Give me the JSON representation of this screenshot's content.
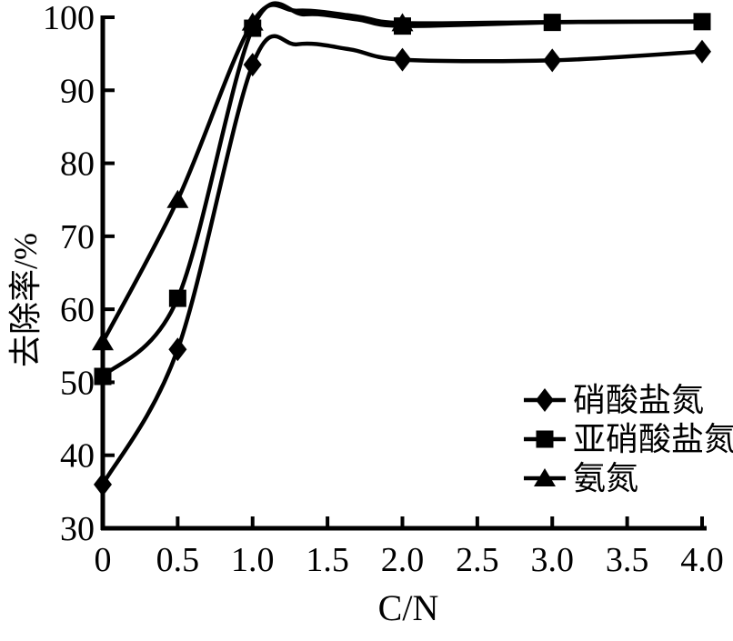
{
  "figure": {
    "background": "#ffffff",
    "ink_color": "#000000"
  },
  "chart_data": {
    "type": "line",
    "title": "",
    "xlabel": "C/N",
    "ylabel": "去除率/%",
    "xlim": [
      0,
      4.0
    ],
    "ylim": [
      30,
      100
    ],
    "xticks": [
      0,
      0.5,
      1.0,
      1.5,
      2.0,
      2.5,
      3.0,
      3.5,
      4.0
    ],
    "xtick_labels": [
      "0",
      "0.5",
      "1.0",
      "1.5",
      "2.0",
      "2.5",
      "3.0",
      "3.5",
      "4.0"
    ],
    "yticks": [
      30,
      40,
      50,
      60,
      70,
      80,
      90,
      100
    ],
    "ytick_labels": [
      "30",
      "40",
      "50",
      "60",
      "70",
      "80",
      "90",
      "100"
    ],
    "grid": false,
    "legend_position": "lower right",
    "series": [
      {
        "name": "硝酸盐氮",
        "id": "nitrate",
        "marker": "diamond",
        "color": "#000000",
        "x": [
          0,
          0.5,
          1.0,
          2.0,
          3.0,
          4.0
        ],
        "y": [
          36,
          54.5,
          93.5,
          94.2,
          94.1,
          95.3
        ],
        "curve_x": [
          0,
          0.5,
          1.0,
          1.3,
          1.65,
          2.0,
          3.0,
          4.0
        ],
        "curve_y": [
          36,
          54.5,
          93.5,
          96.3,
          95.6,
          94.2,
          94.1,
          95.3
        ]
      },
      {
        "name": "亚硝酸盐氮",
        "id": "nitrite",
        "marker": "square",
        "color": "#000000",
        "x": [
          0,
          0.5,
          1.0,
          2.0,
          3.0,
          4.0
        ],
        "y": [
          50.8,
          61.5,
          98.5,
          98.8,
          99.3,
          99.4
        ],
        "curve_x": [
          0,
          0.5,
          1.0,
          1.35,
          1.7,
          2.0,
          3.0,
          4.0
        ],
        "curve_y": [
          50.8,
          61.5,
          98.5,
          100.4,
          99.7,
          98.8,
          99.3,
          99.4
        ]
      },
      {
        "name": "氨氮",
        "id": "ammonia",
        "marker": "triangle",
        "color": "#000000",
        "x": [
          0,
          0.5,
          1.0,
          2.0
        ],
        "y": [
          55.5,
          75,
          99.3,
          99.2
        ],
        "curve_x": [
          0,
          0.5,
          1.0,
          1.3,
          1.7,
          2.0,
          3.0,
          4.0
        ],
        "curve_y": [
          55.5,
          75,
          99.3,
          100.9,
          100.1,
          99.2,
          99.35,
          99.45
        ],
        "note": "markers at C/N 3.0 and 4.0 hidden behind nitrite series"
      }
    ]
  },
  "legend": {
    "position": "lower-right",
    "items": [
      {
        "label": "硝酸盐氮",
        "marker": "diamond"
      },
      {
        "label": "亚硝酸盐氮",
        "marker": "square"
      },
      {
        "label": "氨氮",
        "marker": "triangle"
      }
    ]
  }
}
